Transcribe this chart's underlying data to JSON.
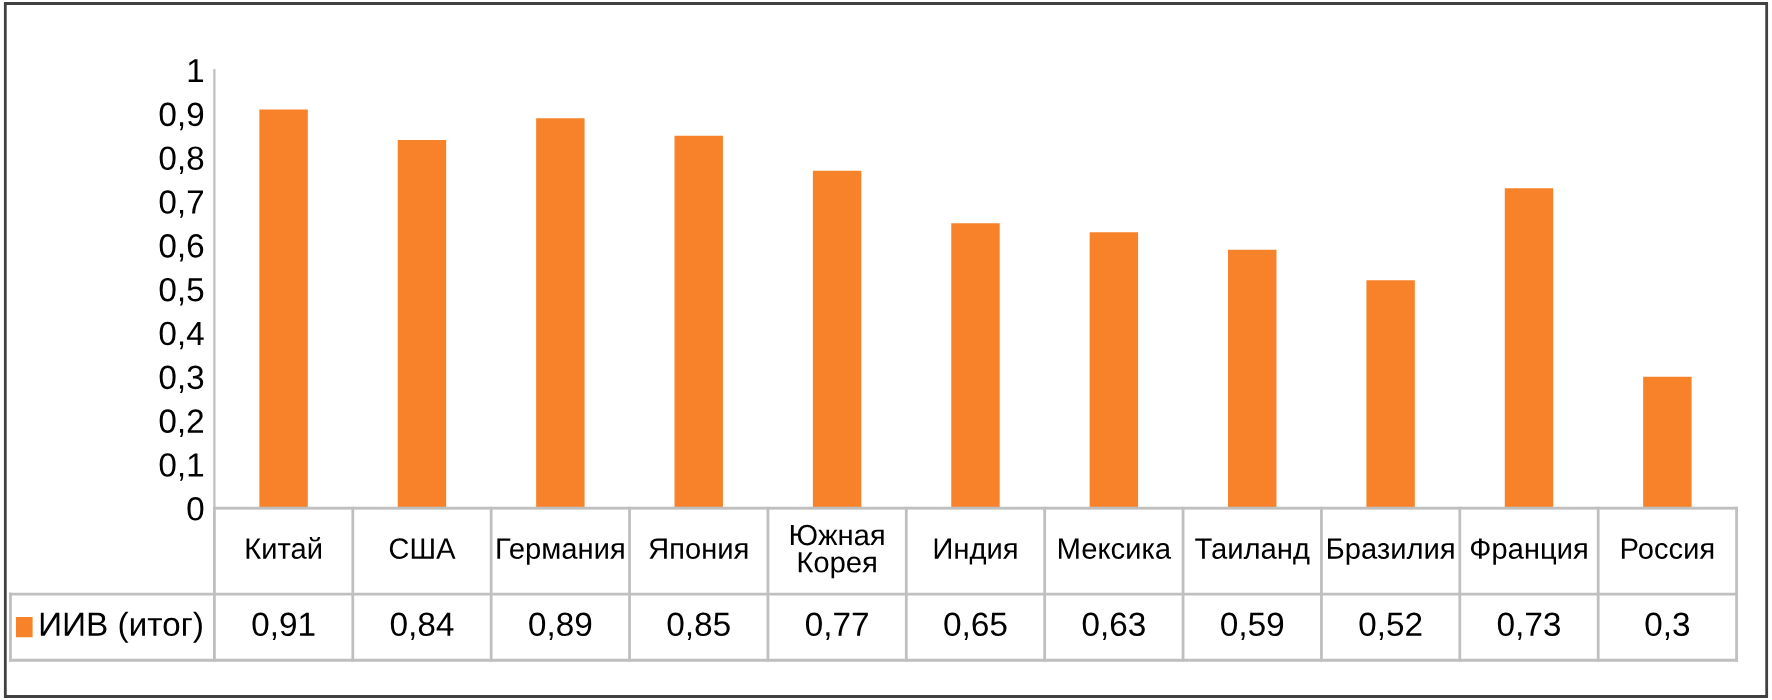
{
  "chart_data": {
    "type": "bar",
    "categories": [
      "Китай",
      "США",
      "Германия",
      "Япония",
      "Южная\nКорея",
      "Индия",
      "Мексика",
      "Таиланд",
      "Бразилия",
      "Франция",
      "Россия"
    ],
    "series": [
      {
        "name": "ИИВ (итог)",
        "color": "#f7822a",
        "values": [
          0.91,
          0.84,
          0.89,
          0.85,
          0.77,
          0.65,
          0.63,
          0.59,
          0.52,
          0.73,
          0.3
        ],
        "value_labels": [
          "0,91",
          "0,84",
          "0,89",
          "0,85",
          "0,77",
          "0,65",
          "0,63",
          "0,59",
          "0,52",
          "0,73",
          "0,3"
        ]
      }
    ],
    "ylim": [
      0,
      1
    ],
    "yticks": [
      0,
      {
        "value": 0.1,
        "label": "0,1"
      },
      {
        "value": 0.2,
        "label": "0,2"
      },
      {
        "value": 0.3,
        "label": "0,3"
      },
      {
        "value": 0.4,
        "label": "0,4"
      },
      {
        "value": 0.5,
        "label": "0,5"
      },
      {
        "value": 0.6,
        "label": "0,6"
      },
      {
        "value": 0.7,
        "label": "0,7"
      },
      {
        "value": 0.8,
        "label": "0,8"
      },
      {
        "value": 0.9,
        "label": "0,9"
      },
      1
    ],
    "grid": false,
    "legend": "bottom left"
  }
}
